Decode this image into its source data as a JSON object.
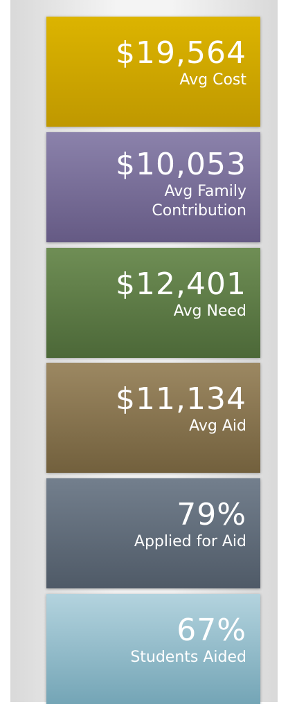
{
  "tiles": [
    {
      "value": "$19,564",
      "label": "Avg Cost",
      "color": [
        "#dcb400",
        "#bf9800"
      ]
    },
    {
      "value": "$10,053",
      "label": "Avg Family Contribution",
      "color": [
        "#8b82ab",
        "#655a84"
      ]
    },
    {
      "value": "$12,401",
      "label": "Avg Need",
      "color": [
        "#6f8e55",
        "#4c6838"
      ]
    },
    {
      "value": "$11,134",
      "label": "Avg Aid",
      "color": [
        "#9c8862",
        "#72603d"
      ]
    },
    {
      "value": "79%",
      "label": "Applied for Aid",
      "color": [
        "#737f8d",
        "#4f5a67"
      ]
    },
    {
      "value": "67%",
      "label": "Students Aided",
      "color": [
        "#b3d3de",
        "#74a5b6"
      ]
    }
  ]
}
